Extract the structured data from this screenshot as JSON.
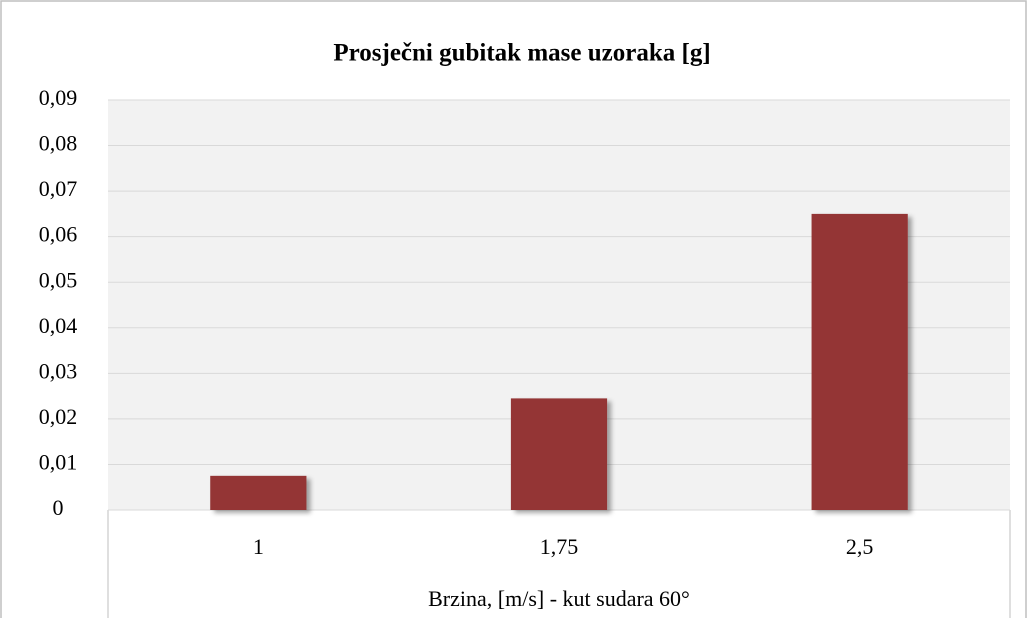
{
  "chart_data": {
    "type": "bar",
    "title": "Prosječni gubitak mase uzoraka [g]",
    "x_label": "Brzina, [m/s] - kut sudara 60°",
    "categories": [
      "1",
      "1,75",
      "2,5"
    ],
    "values": [
      0.0075,
      0.0245,
      0.065
    ],
    "color": "#943634",
    "ylim": [
      0,
      0.09
    ],
    "yticks": [
      0,
      {
        "value": 0.01,
        "label": "0,01"
      },
      {
        "value": 0.02,
        "label": "0,02"
      },
      {
        "value": 0.03,
        "label": "0,03"
      },
      {
        "value": 0.04,
        "label": "0,04"
      },
      {
        "value": 0.05,
        "label": "0,05"
      },
      {
        "value": 0.06,
        "label": "0,06"
      },
      {
        "value": 0.07,
        "label": "0,07"
      },
      {
        "value": 0.08,
        "label": "0,08"
      },
      {
        "value": 0.09,
        "label": "0,09"
      }
    ],
    "grid": true
  }
}
